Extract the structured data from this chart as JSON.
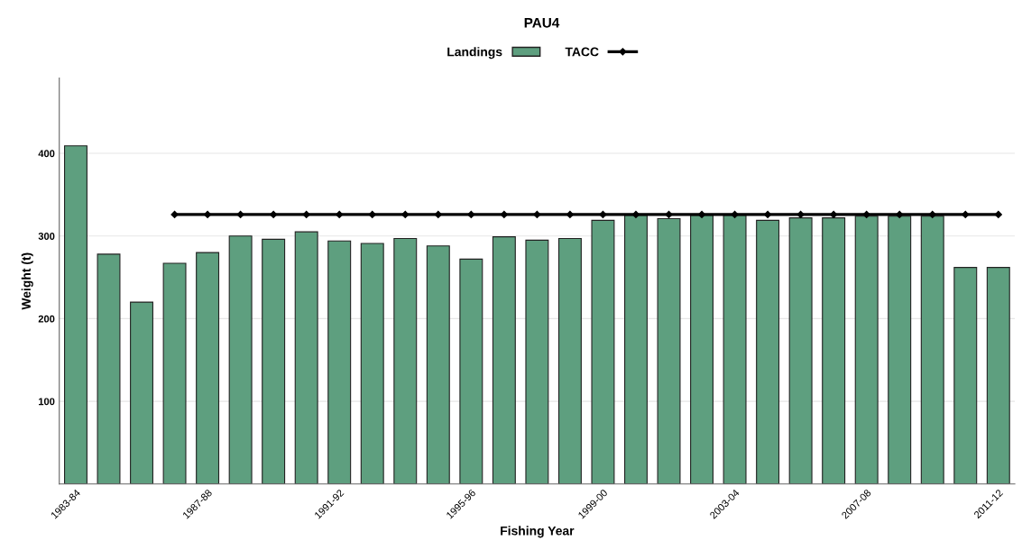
{
  "chart_data": {
    "type": "bar",
    "title": "PAU4",
    "xlabel": "Fishing Year",
    "ylabel": "Weight (t)",
    "categories": [
      "1983-84",
      null,
      null,
      null,
      "1987-88",
      null,
      null,
      null,
      "1991-92",
      null,
      null,
      null,
      "1995-96",
      null,
      null,
      null,
      "1999-00",
      null,
      null,
      null,
      "2003-04",
      null,
      null,
      null,
      "2007-08",
      null,
      null,
      null,
      "2011-12"
    ],
    "series": [
      {
        "name": "Landings",
        "color": "#5e9f7f",
        "values": [
          409,
          278,
          220,
          267,
          280,
          300,
          296,
          305,
          294,
          291,
          297,
          288,
          272,
          299,
          295,
          297,
          319,
          325,
          321,
          325,
          325,
          319,
          322,
          322,
          324,
          324,
          324,
          262,
          262
        ]
      },
      {
        "name": "TACC",
        "type": "line",
        "color": "#000000",
        "marker": "diamond",
        "line_style": "solid",
        "values": [
          null,
          null,
          null,
          326,
          326,
          326,
          326,
          326,
          326,
          326,
          326,
          326,
          326,
          326,
          326,
          326,
          326,
          326,
          326,
          326,
          326,
          326,
          326,
          326,
          326,
          326,
          326,
          326,
          326
        ]
      }
    ],
    "ylim": [
      0,
      491
    ],
    "yticks": [
      100,
      200,
      300,
      400
    ],
    "grid": "y",
    "legend": "top"
  }
}
